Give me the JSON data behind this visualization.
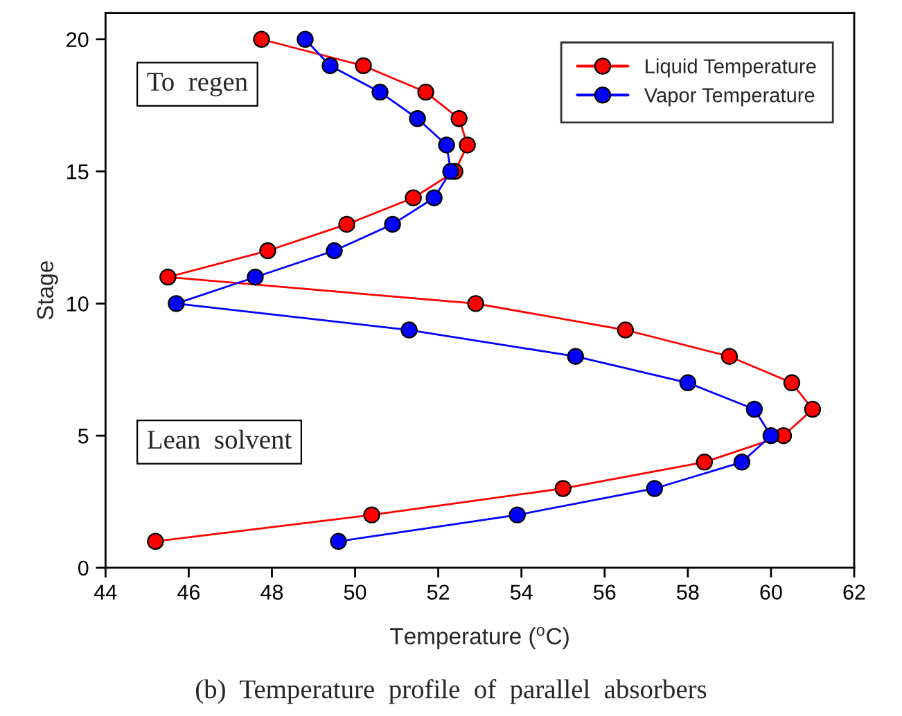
{
  "chart_data": {
    "type": "line",
    "xlabel": "Temperature ($^{o}$C)",
    "ylabel": "Stage",
    "annotations": [
      "To  regen",
      "Lean  solvent",
      "(b)  Temperature  profile  of  parallel  absorbers"
    ],
    "series": [
      {
        "name": "Liquid Temperature",
        "color": "#ff0000",
        "x": [
          47.75,
          50.2,
          51.7,
          52.5,
          52.7,
          52.4,
          51.4,
          49.8,
          47.9,
          45.5,
          52.9,
          56.5,
          59.0,
          60.5,
          61.0,
          60.3,
          58.4,
          55.0,
          50.4,
          45.2
        ],
        "values": [
          20,
          19,
          18,
          17,
          16,
          15,
          14,
          13,
          12,
          11,
          10,
          9,
          8,
          7,
          6,
          5,
          4,
          3,
          2,
          1
        ]
      },
      {
        "name": "Vapor Temperature",
        "color": "#0000ff",
        "x": [
          48.8,
          49.4,
          50.6,
          51.5,
          52.2,
          52.3,
          51.9,
          50.9,
          49.5,
          47.6,
          45.7,
          51.3,
          55.3,
          58.0,
          59.6,
          60.0,
          59.3,
          57.2,
          53.9,
          49.6
        ],
        "values": [
          20,
          19,
          18,
          17,
          16,
          15,
          14,
          13,
          12,
          11,
          10,
          9,
          8,
          7,
          6,
          5,
          4,
          3,
          2,
          1
        ]
      }
    ],
    "xlim": [
      44,
      62
    ],
    "xticks": [
      44,
      46,
      48,
      50,
      52,
      54,
      56,
      58,
      60,
      62
    ],
    "ylim": [
      0,
      21
    ],
    "yticks": [
      0,
      5,
      10,
      15,
      20
    ],
    "grid": false,
    "legend": "top right",
    "marker": "circle",
    "line_style": "solid"
  }
}
